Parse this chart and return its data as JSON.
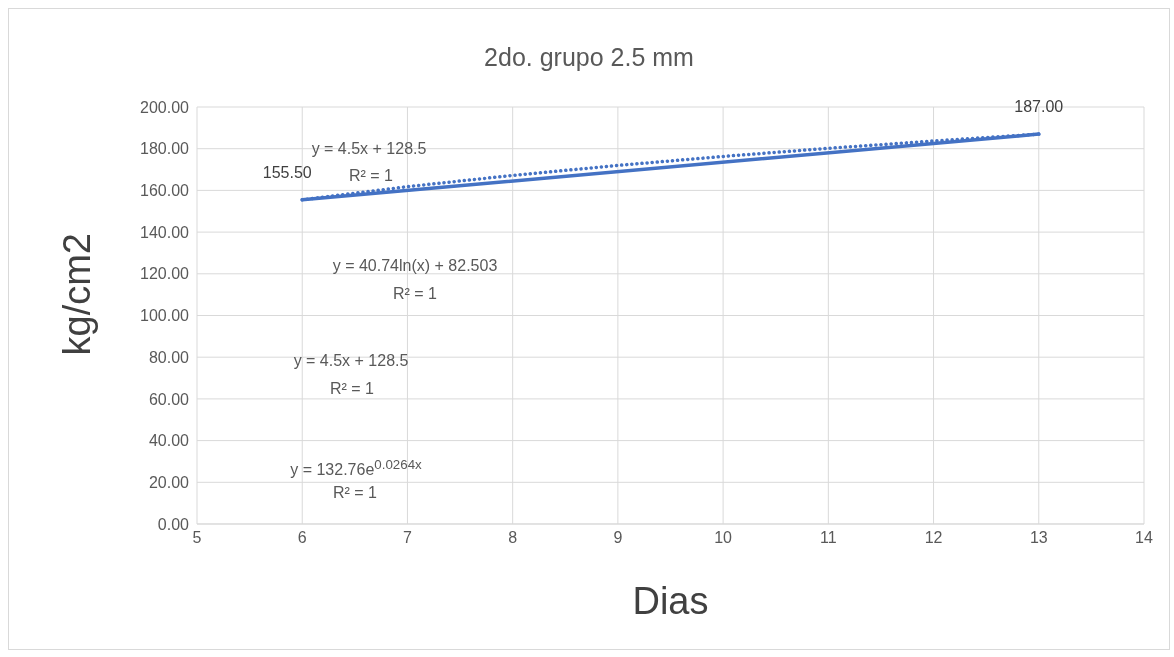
{
  "chart_data": {
    "type": "line",
    "title": "2do. grupo 2.5 mm",
    "xlabel": "Dias",
    "ylabel": "kg/cm2",
    "series": [
      {
        "x": [
          6,
          13
        ],
        "values": [
          155.5,
          187
        ],
        "color": "#4472c4",
        "line_style": "solid",
        "value_labels": [
          "155.50",
          "187.00"
        ]
      },
      {
        "x": [
          6,
          7,
          8,
          9,
          10,
          11,
          12,
          13
        ],
        "values": [
          155.5,
          161.8,
          167.2,
          172.0,
          176.3,
          180.2,
          183.7,
          187.0
        ],
        "color": "#4472c4",
        "line_style": "dotted"
      }
    ],
    "annotations": [
      "y = 4.5x + 128.5",
      "R² = 1",
      "y = 40.74ln(x) + 82.503",
      "R² = 1",
      "y = 4.5x + 128.5",
      "R² = 1",
      "y = 132.76e$^{0.0264x}$",
      "R² = 1"
    ],
    "xlim": [
      5,
      14
    ],
    "xticks": [
      5,
      6,
      7,
      8,
      9,
      10,
      11,
      12,
      13,
      14
    ],
    "ylim": [
      0,
      200
    ],
    "yticks": [
      {
        "value": 0,
        "label": "0.00"
      },
      {
        "value": 20,
        "label": "20.00"
      },
      {
        "value": 40,
        "label": "40.00"
      },
      {
        "value": 60,
        "label": "60.00"
      },
      {
        "value": 80,
        "label": "80.00"
      },
      {
        "value": 100,
        "label": "100.00"
      },
      {
        "value": 120,
        "label": "120.00"
      },
      {
        "value": 140,
        "label": "140.00"
      },
      {
        "value": 160,
        "label": "160.00"
      },
      {
        "value": 180,
        "label": "180.00"
      },
      {
        "value": 200,
        "label": "200.00"
      }
    ],
    "grid": true,
    "marker": "none"
  }
}
